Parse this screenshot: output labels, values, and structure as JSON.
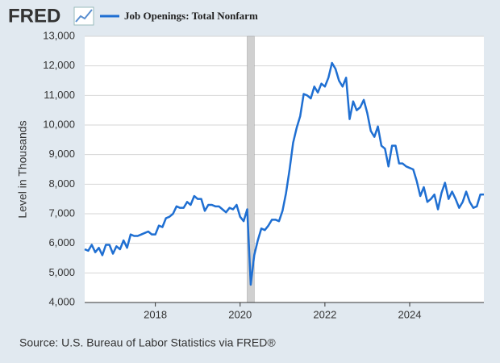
{
  "logo": "FRED",
  "chart_data": {
    "type": "line",
    "y_label": "Level in Thousands",
    "source": "Source: U.S. Bureau of Labor Statistics via FRED®",
    "xlim": [
      2016.333,
      2025.75
    ],
    "xticks": [
      2018,
      2020,
      2022,
      2024
    ],
    "ylim": [
      4000,
      13000
    ],
    "yticks": [
      {
        "value": 4000,
        "label": "4,000"
      },
      {
        "value": 5000,
        "label": "5,000"
      },
      {
        "value": 6000,
        "label": "6,000"
      },
      {
        "value": 7000,
        "label": "7,000"
      },
      {
        "value": 8000,
        "label": "8,000"
      },
      {
        "value": 9000,
        "label": "9,000"
      },
      {
        "value": 10000,
        "label": "10,000"
      },
      {
        "value": 11000,
        "label": "11,000"
      },
      {
        "value": 12000,
        "label": "12,000"
      },
      {
        "value": 13000,
        "label": "13,000"
      }
    ],
    "grid": true,
    "recessions": [
      [
        2020.167,
        2020.333
      ]
    ],
    "x": [
      2016.333,
      2016.417,
      2016.5,
      2016.583,
      2016.667,
      2016.75,
      2016.833,
      2016.917,
      2017,
      2017.083,
      2017.167,
      2017.25,
      2017.333,
      2017.417,
      2017.5,
      2017.583,
      2017.667,
      2017.75,
      2017.833,
      2017.917,
      2018,
      2018.083,
      2018.167,
      2018.25,
      2018.333,
      2018.417,
      2018.5,
      2018.583,
      2018.667,
      2018.75,
      2018.833,
      2018.917,
      2019,
      2019.083,
      2019.167,
      2019.25,
      2019.333,
      2019.417,
      2019.5,
      2019.583,
      2019.667,
      2019.75,
      2019.833,
      2019.917,
      2020,
      2020.083,
      2020.167,
      2020.25,
      2020.333,
      2020.417,
      2020.5,
      2020.583,
      2020.667,
      2020.75,
      2020.833,
      2020.917,
      2021,
      2021.083,
      2021.167,
      2021.25,
      2021.333,
      2021.417,
      2021.5,
      2021.583,
      2021.667,
      2021.75,
      2021.833,
      2021.917,
      2022,
      2022.083,
      2022.167,
      2022.25,
      2022.333,
      2022.417,
      2022.5,
      2022.583,
      2022.667,
      2022.75,
      2022.833,
      2022.917,
      2023,
      2023.083,
      2023.167,
      2023.25,
      2023.333,
      2023.417,
      2023.5,
      2023.583,
      2023.667,
      2023.75,
      2023.833,
      2023.917,
      2024,
      2024.083,
      2024.167,
      2024.25,
      2024.333,
      2024.417,
      2024.5,
      2024.583,
      2024.667,
      2024.75,
      2024.833,
      2024.917,
      2025,
      2025.083,
      2025.167,
      2025.25,
      2025.333,
      2025.417,
      2025.5,
      2025.583,
      2025.667,
      2025.75
    ],
    "series": [
      {
        "name": "Job Openings: Total Nonfarm",
        "color": "#1f6fd2",
        "values": [
          5800,
          5750,
          5950,
          5700,
          5850,
          5600,
          5950,
          5950,
          5650,
          5900,
          5800,
          6100,
          5850,
          6300,
          6250,
          6250,
          6300,
          6350,
          6400,
          6300,
          6300,
          6600,
          6550,
          6850,
          6900,
          7000,
          7250,
          7200,
          7200,
          7400,
          7300,
          7600,
          7500,
          7500,
          7100,
          7300,
          7300,
          7250,
          7250,
          7150,
          7050,
          7200,
          7150,
          7300,
          6900,
          6750,
          7150,
          4600,
          5600,
          6100,
          6500,
          6450,
          6600,
          6800,
          6800,
          6750,
          7100,
          7700,
          8500,
          9400,
          9900,
          10300,
          11050,
          11000,
          10900,
          11300,
          11100,
          11400,
          11300,
          11600,
          12100,
          11900,
          11500,
          11300,
          11600,
          10200,
          10800,
          10500,
          10600,
          10850,
          10400,
          9800,
          9600,
          9950,
          9300,
          9200,
          8600,
          9300,
          9300,
          8700,
          8700,
          8600,
          8550,
          8500,
          8100,
          7600,
          7900,
          7400,
          7500,
          7650,
          7150,
          7700,
          8050,
          7500,
          7750,
          7500,
          7200,
          7400,
          7750,
          7400,
          7200,
          7250,
          7650,
          7650
        ]
      }
    ]
  }
}
